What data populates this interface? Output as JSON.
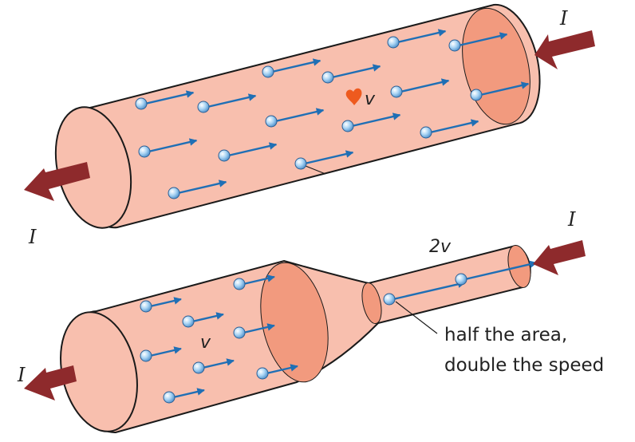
{
  "labels": {
    "current_top_right": "I",
    "current_top_left": "I",
    "current_bottom_right": "I",
    "current_bottom_left": "I",
    "velocity_top": "v",
    "velocity_bottom_wide": "v",
    "velocity_bottom_narrow": "2v",
    "annotation_line1": "half the area,",
    "annotation_line2": "double the speed"
  },
  "colors": {
    "tube_fill": "#f8bfae",
    "end_face": "#f29a7e",
    "outline": "#1a1a1a",
    "current_arrow": "#8e2a2c",
    "velocity_arrow": "#1f6fb5",
    "charge": "#8cc4ee",
    "highlight_charge": "#ee5a1e"
  }
}
